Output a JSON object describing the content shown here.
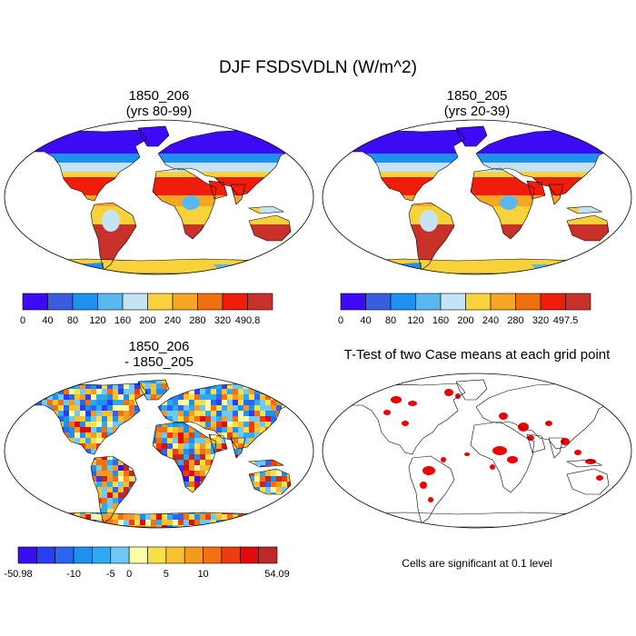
{
  "title": "DJF FSDSVDLN (W/m^2)",
  "panels": [
    {
      "line1": "1850_206",
      "line2": "(yrs 80-99)"
    },
    {
      "line1": "1850_205",
      "line2": "(yrs 20-39)"
    },
    {
      "line1": "1850_206",
      "line2": "- 1850_205"
    },
    {
      "line1": "T-Test of two Case means at each grid point",
      "line2": ""
    }
  ],
  "colorbars": [
    {
      "colors": [
        "#3d0af5",
        "#3a5ce0",
        "#1e90f0",
        "#5ab8f0",
        "#c4e4f6",
        "#f7d23a",
        "#f5a623",
        "#f07010",
        "#f01c0c",
        "#c8302a"
      ],
      "labels": [
        "0",
        "40",
        "80",
        "120",
        "160",
        "200",
        "240",
        "280",
        "320",
        "490.8"
      ]
    },
    {
      "colors": [
        "#3d0af5",
        "#3a5ce0",
        "#1e90f0",
        "#5ab8f0",
        "#c4e4f6",
        "#f7d23a",
        "#f5a623",
        "#f07010",
        "#f01c0c",
        "#c8302a"
      ],
      "labels": [
        "0",
        "40",
        "80",
        "120",
        "160",
        "200",
        "240",
        "280",
        "320",
        "497.5"
      ]
    },
    {
      "colors": [
        "#3b0ef0",
        "#2a3ef4",
        "#2a66f0",
        "#1e90f0",
        "#30aaee",
        "#70c8f4",
        "#fbfba8",
        "#f9e04a",
        "#f8c030",
        "#f59a20",
        "#f26f12",
        "#ee3c0e",
        "#e00c0c",
        "#c02828"
      ],
      "labels": [
        "-50.98",
        "-10",
        "-5",
        "0",
        "5",
        "10",
        "54.09"
      ]
    }
  ],
  "note": "Cells are significant at 0.1 level",
  "field_colors": {
    "ocean": "#ffffff",
    "significant": "#ee0000",
    "coast": "#000000"
  }
}
